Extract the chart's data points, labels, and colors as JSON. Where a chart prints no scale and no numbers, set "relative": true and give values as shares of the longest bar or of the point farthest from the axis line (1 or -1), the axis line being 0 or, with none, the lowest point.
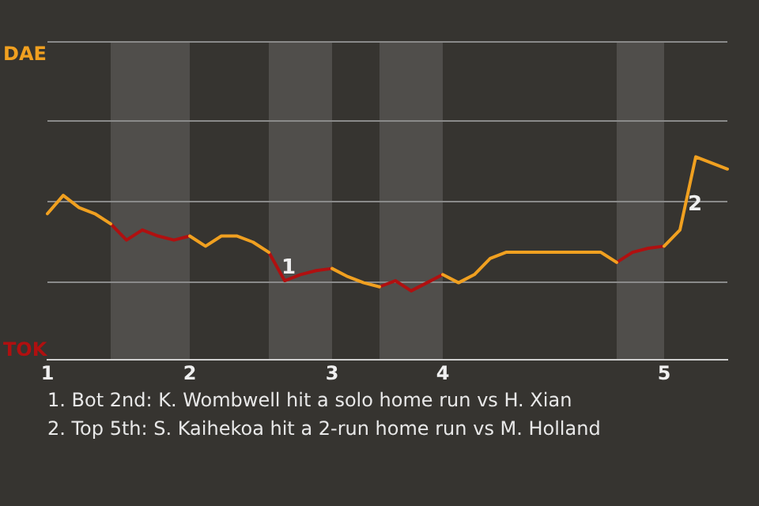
{
  "chart_data": {
    "type": "line",
    "relative": true,
    "categories": [
      "1",
      null,
      null,
      null,
      null,
      null,
      null,
      null,
      null,
      "2",
      null,
      null,
      null,
      null,
      null,
      null,
      null,
      null,
      "3",
      null,
      null,
      null,
      null,
      null,
      null,
      "4",
      null,
      null,
      null,
      null,
      null,
      null,
      null,
      null,
      null,
      null,
      null,
      null,
      null,
      "5",
      null,
      null,
      null,
      null
    ],
    "series": [
      {
        "color": "#f0a020",
        "values": [
          0.72,
          0.81,
          0.75,
          0.72,
          0.67,
          null,
          null,
          null,
          null,
          0.61,
          0.56,
          0.61,
          0.61,
          0.58,
          0.53,
          null,
          null,
          null,
          0.45,
          0.41,
          0.38,
          0.36,
          null,
          null,
          null,
          0.42,
          0.38,
          0.42,
          0.5,
          0.53,
          0.53,
          0.53,
          0.53,
          0.53,
          0.53,
          0.53,
          0.48,
          null,
          null,
          0.56,
          0.64,
          1,
          0.97,
          0.94
        ]
      },
      {
        "color": "#b01010",
        "values": [
          null,
          null,
          null,
          null,
          0.67,
          0.59,
          0.64,
          0.61,
          0.59,
          0.61,
          null,
          null,
          null,
          null,
          0.53,
          0.39,
          0.42,
          0.44,
          0.45,
          null,
          null,
          0.36,
          0.39,
          0.34,
          0.38,
          0.42,
          null,
          null,
          null,
          null,
          null,
          null,
          null,
          null,
          null,
          null,
          0.48,
          0.53,
          0.55,
          0.56,
          null,
          null,
          null,
          null
        ]
      }
    ],
    "ref_lines": [
      {
        "axis": "y",
        "value": 0.39,
        "color": "#8a8a8a"
      },
      {
        "axis": "y",
        "value": 0.78,
        "color": "#8a8a8a"
      },
      {
        "axis": "y",
        "value": 1.18,
        "color": "#8a8a8a"
      },
      {
        "axis": "y",
        "value": 1.57,
        "color": "#8a8a8a"
      }
    ],
    "legend": false,
    "marker": "none",
    "line_style": "solid",
    "annotations": [
      "DAE",
      "TOK",
      "1",
      "2",
      "1. Bot 2nd: K. Wombwell hit a solo home run vs H. Xian",
      "2. Top 5th: S. Kaihekoa hit a 2-run home run vs M. Holland"
    ]
  }
}
